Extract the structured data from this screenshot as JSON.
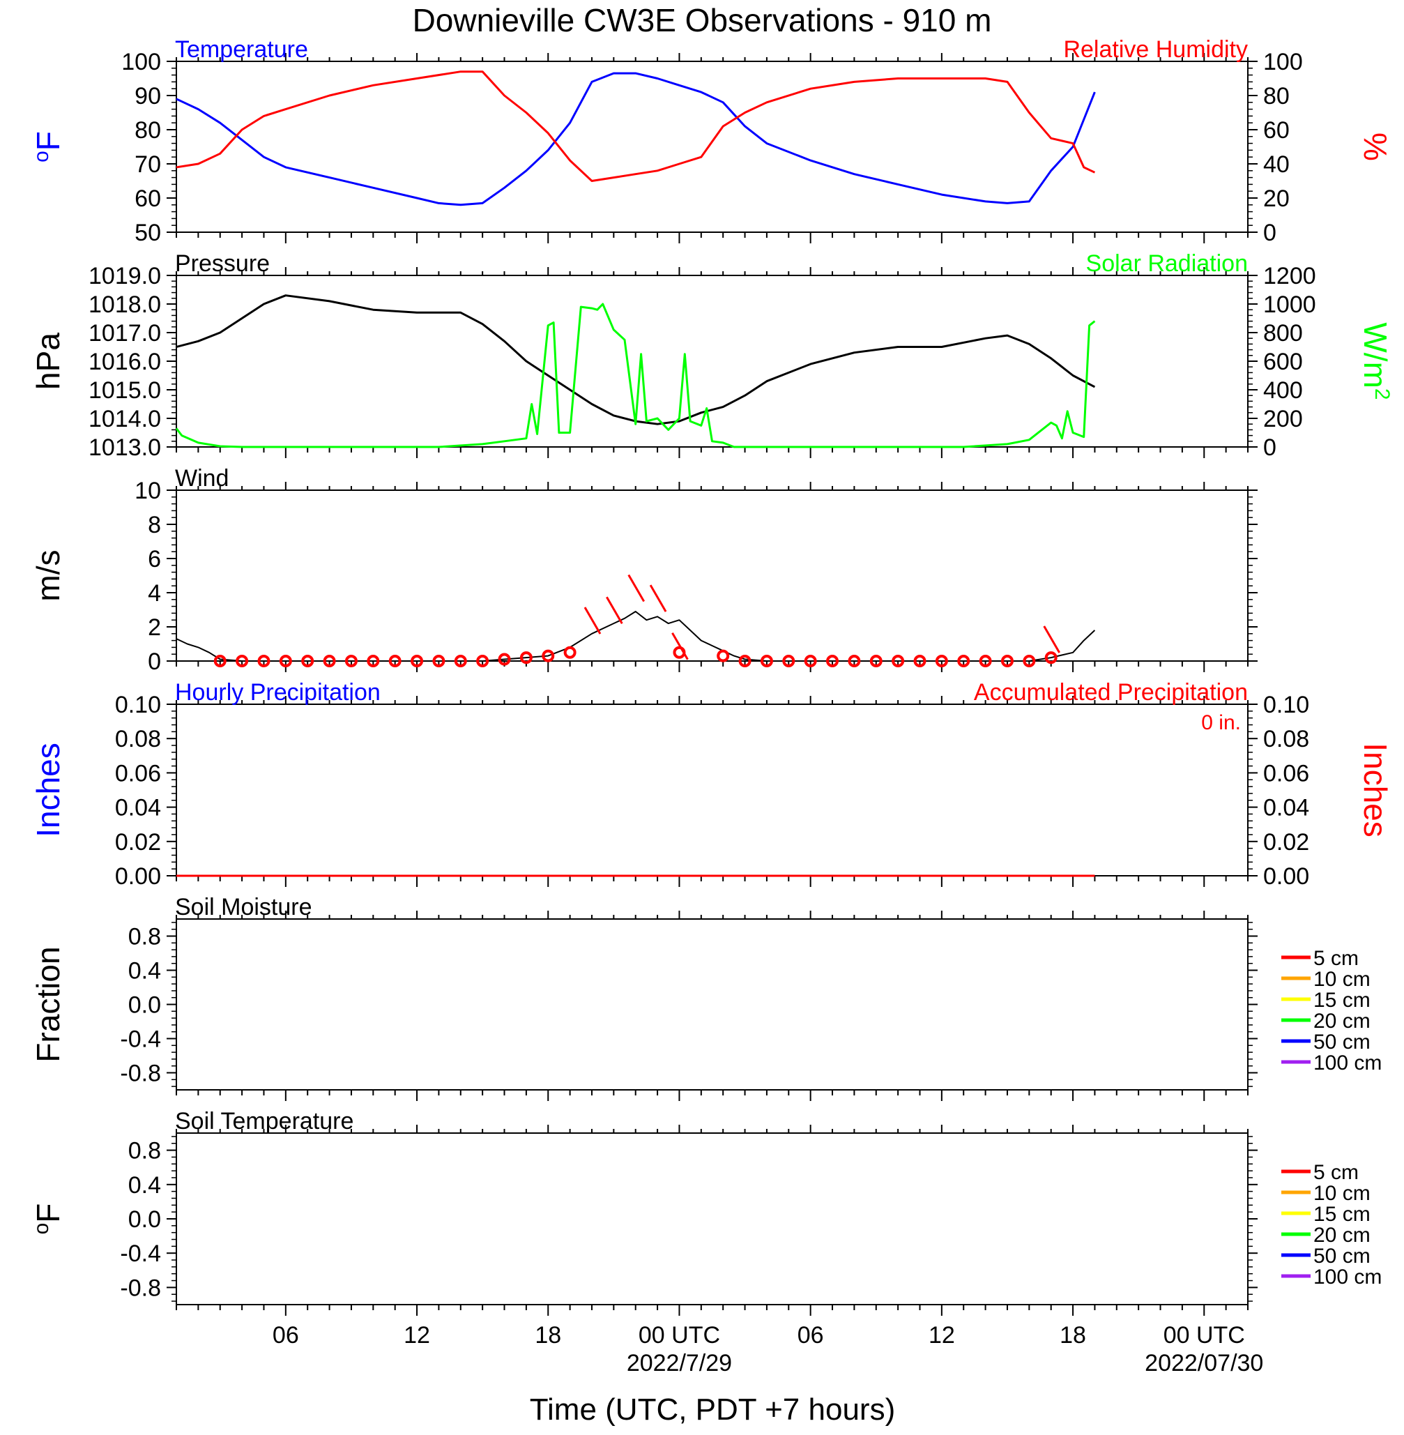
{
  "title": "Downieville CW3E Observations - 910 m",
  "xlabel": "Time (UTC, PDT +7 hours)",
  "time_axis": {
    "start": "2022-07-28T01:00Z",
    "end": "2022-07-30T02:00Z",
    "tick_labels": [
      {
        "time": "2022-07-28T06:00Z",
        "label": "06"
      },
      {
        "time": "2022-07-28T12:00Z",
        "label": "12"
      },
      {
        "time": "2022-07-28T18:00Z",
        "label": "18"
      },
      {
        "time": "2022-07-29T00:00Z",
        "label": "00 UTC",
        "date": "2022/7/29"
      },
      {
        "time": "2022-07-29T06:00Z",
        "label": "06"
      },
      {
        "time": "2022-07-29T12:00Z",
        "label": "12"
      },
      {
        "time": "2022-07-29T18:00Z",
        "label": "18"
      },
      {
        "time": "2022-07-30T00:00Z",
        "label": "00 UTC",
        "date": "2022/07/30"
      }
    ]
  },
  "colors": {
    "temperature": "#0000ff",
    "humidity": "#ff0000",
    "pressure": "#000000",
    "solar": "#00ff00",
    "wind": "#000000",
    "wind_barb": "#ff0000",
    "hourly_precip": "#0000ff",
    "accum_precip": "#ff0000"
  },
  "chart_data": [
    {
      "type": "line",
      "panel": "temperature-humidity",
      "left_title": "Temperature",
      "right_title": "Relative Humidity",
      "ylabel_left": "oF",
      "ylabel_right": "%",
      "ylim_left": [
        50,
        100
      ],
      "ylim_right": [
        0,
        100
      ],
      "yticks_left": [
        "50",
        "60",
        "70",
        "80",
        "90",
        "100"
      ],
      "yticks_right": [
        "0",
        "20",
        "40",
        "60",
        "80",
        "100"
      ],
      "series": [
        {
          "key": "temperature",
          "axis": "left",
          "x": [
            "2022-07-28T01:00Z",
            "2022-07-28T02:00Z",
            "2022-07-28T03:00Z",
            "2022-07-28T04:00Z",
            "2022-07-28T05:00Z",
            "2022-07-28T06:00Z",
            "2022-07-28T08:00Z",
            "2022-07-28T10:00Z",
            "2022-07-28T12:00Z",
            "2022-07-28T13:00Z",
            "2022-07-28T14:00Z",
            "2022-07-28T15:00Z",
            "2022-07-28T16:00Z",
            "2022-07-28T17:00Z",
            "2022-07-28T18:00Z",
            "2022-07-28T19:00Z",
            "2022-07-28T20:00Z",
            "2022-07-28T21:00Z",
            "2022-07-28T22:00Z",
            "2022-07-28T23:00Z",
            "2022-07-29T00:00Z",
            "2022-07-29T01:00Z",
            "2022-07-29T02:00Z",
            "2022-07-29T03:00Z",
            "2022-07-29T04:00Z",
            "2022-07-29T06:00Z",
            "2022-07-29T08:00Z",
            "2022-07-29T10:00Z",
            "2022-07-29T12:00Z",
            "2022-07-29T14:00Z",
            "2022-07-29T15:00Z",
            "2022-07-29T16:00Z",
            "2022-07-29T17:00Z",
            "2022-07-29T18:00Z",
            "2022-07-29T19:00Z"
          ],
          "y": [
            89,
            86,
            82,
            77,
            72,
            69,
            66,
            63,
            60,
            58.5,
            58,
            58.5,
            63,
            68,
            74,
            82,
            94,
            96.5,
            96.5,
            95,
            93,
            91,
            88,
            81,
            76,
            71,
            67,
            64,
            61,
            59,
            58.5,
            59,
            68,
            75,
            91
          ]
        },
        {
          "key": "humidity",
          "axis": "right",
          "x": [
            "2022-07-28T01:00Z",
            "2022-07-28T02:00Z",
            "2022-07-28T03:00Z",
            "2022-07-28T04:00Z",
            "2022-07-28T05:00Z",
            "2022-07-28T06:00Z",
            "2022-07-28T08:00Z",
            "2022-07-28T10:00Z",
            "2022-07-28T12:00Z",
            "2022-07-28T14:00Z",
            "2022-07-28T15:00Z",
            "2022-07-28T16:00Z",
            "2022-07-28T17:00Z",
            "2022-07-28T18:00Z",
            "2022-07-28T19:00Z",
            "2022-07-28T20:00Z",
            "2022-07-28T21:00Z",
            "2022-07-28T22:00Z",
            "2022-07-28T23:00Z",
            "2022-07-29T00:00Z",
            "2022-07-29T01:00Z",
            "2022-07-29T02:00Z",
            "2022-07-29T03:00Z",
            "2022-07-29T04:00Z",
            "2022-07-29T06:00Z",
            "2022-07-29T08:00Z",
            "2022-07-29T10:00Z",
            "2022-07-29T12:00Z",
            "2022-07-29T14:00Z",
            "2022-07-29T15:00Z",
            "2022-07-29T16:00Z",
            "2022-07-29T17:00Z",
            "2022-07-29T18:00Z",
            "2022-07-29T18:30Z",
            "2022-07-29T19:00Z"
          ],
          "y": [
            38,
            40,
            46,
            60,
            68,
            72,
            80,
            86,
            90,
            94,
            94,
            80,
            70,
            58,
            42,
            30,
            32,
            34,
            36,
            40,
            44,
            62,
            70,
            76,
            84,
            88,
            90,
            90,
            90,
            88,
            70,
            55,
            52,
            38,
            35
          ]
        }
      ]
    },
    {
      "type": "line",
      "panel": "pressure-solar",
      "left_title": "Pressure",
      "right_title": "Solar Radiation",
      "ylabel_left": "hPa",
      "ylabel_right": "W/m2",
      "ylim_left": [
        1013.0,
        1019.0
      ],
      "ylim_right": [
        0,
        1200
      ],
      "yticks_left": [
        "1013.0",
        "1014.0",
        "1015.0",
        "1016.0",
        "1017.0",
        "1018.0",
        "1019.0"
      ],
      "yticks_right": [
        "0",
        "200",
        "400",
        "600",
        "800",
        "1000",
        "1200"
      ],
      "series": [
        {
          "key": "pressure",
          "axis": "left",
          "x": [
            "2022-07-28T01:00Z",
            "2022-07-28T02:00Z",
            "2022-07-28T03:00Z",
            "2022-07-28T04:00Z",
            "2022-07-28T05:00Z",
            "2022-07-28T06:00Z",
            "2022-07-28T08:00Z",
            "2022-07-28T10:00Z",
            "2022-07-28T12:00Z",
            "2022-07-28T14:00Z",
            "2022-07-28T15:00Z",
            "2022-07-28T16:00Z",
            "2022-07-28T17:00Z",
            "2022-07-28T18:00Z",
            "2022-07-28T19:00Z",
            "2022-07-28T20:00Z",
            "2022-07-28T21:00Z",
            "2022-07-28T22:00Z",
            "2022-07-28T23:00Z",
            "2022-07-29T00:00Z",
            "2022-07-29T01:00Z",
            "2022-07-29T02:00Z",
            "2022-07-29T03:00Z",
            "2022-07-29T04:00Z",
            "2022-07-29T06:00Z",
            "2022-07-29T08:00Z",
            "2022-07-29T10:00Z",
            "2022-07-29T12:00Z",
            "2022-07-29T14:00Z",
            "2022-07-29T15:00Z",
            "2022-07-29T16:00Z",
            "2022-07-29T17:00Z",
            "2022-07-29T18:00Z",
            "2022-07-29T19:00Z"
          ],
          "y": [
            1016.5,
            1016.7,
            1017.0,
            1017.5,
            1018.0,
            1018.3,
            1018.1,
            1017.8,
            1017.7,
            1017.7,
            1017.3,
            1016.7,
            1016.0,
            1015.5,
            1015.0,
            1014.5,
            1014.1,
            1013.9,
            1013.8,
            1013.9,
            1014.2,
            1014.4,
            1014.8,
            1015.3,
            1015.9,
            1016.3,
            1016.5,
            1016.5,
            1016.8,
            1016.9,
            1016.6,
            1016.1,
            1015.5,
            1015.1
          ]
        },
        {
          "key": "solar",
          "axis": "right",
          "x": [
            "2022-07-28T01:00Z",
            "2022-07-28T01:15Z",
            "2022-07-28T02:00Z",
            "2022-07-28T03:00Z",
            "2022-07-28T04:00Z",
            "2022-07-28T13:00Z",
            "2022-07-28T15:00Z",
            "2022-07-28T16:00Z",
            "2022-07-28T17:00Z",
            "2022-07-28T17:15Z",
            "2022-07-28T17:30Z",
            "2022-07-28T18:00Z",
            "2022-07-28T18:15Z",
            "2022-07-28T18:30Z",
            "2022-07-28T19:00Z",
            "2022-07-28T19:30Z",
            "2022-07-28T20:00Z",
            "2022-07-28T20:15Z",
            "2022-07-28T20:30Z",
            "2022-07-28T21:00Z",
            "2022-07-28T21:30Z",
            "2022-07-28T22:00Z",
            "2022-07-28T22:15Z",
            "2022-07-28T22:30Z",
            "2022-07-28T23:00Z",
            "2022-07-28T23:15Z",
            "2022-07-28T23:30Z",
            "2022-07-29T00:00Z",
            "2022-07-29T00:15Z",
            "2022-07-29T00:30Z",
            "2022-07-29T01:00Z",
            "2022-07-29T01:15Z",
            "2022-07-29T01:30Z",
            "2022-07-29T02:00Z",
            "2022-07-29T02:30Z",
            "2022-07-29T03:00Z",
            "2022-07-29T04:00Z",
            "2022-07-29T13:00Z",
            "2022-07-29T15:00Z",
            "2022-07-29T16:00Z",
            "2022-07-29T17:00Z",
            "2022-07-29T17:15Z",
            "2022-07-29T17:30Z",
            "2022-07-29T17:45Z",
            "2022-07-29T18:00Z",
            "2022-07-29T18:30Z",
            "2022-07-29T18:45Z",
            "2022-07-29T19:00Z"
          ],
          "y": [
            130,
            80,
            30,
            5,
            0,
            0,
            20,
            40,
            60,
            300,
            90,
            850,
            870,
            100,
            100,
            980,
            970,
            960,
            1000,
            820,
            750,
            160,
            650,
            180,
            200,
            160,
            120,
            200,
            650,
            180,
            150,
            270,
            40,
            30,
            0,
            0,
            0,
            0,
            20,
            50,
            170,
            150,
            60,
            250,
            100,
            70,
            850,
            880
          ]
        }
      ]
    },
    {
      "type": "line",
      "panel": "wind",
      "left_title": "Wind",
      "ylabel_left": "m/s",
      "ylim_left": [
        0,
        10
      ],
      "yticks_left": [
        "0",
        "2",
        "4",
        "6",
        "8",
        "10"
      ],
      "series": [
        {
          "key": "wind",
          "axis": "left",
          "x": [
            "2022-07-28T01:00Z",
            "2022-07-28T01:30Z",
            "2022-07-28T02:00Z",
            "2022-07-28T02:30Z",
            "2022-07-28T03:00Z",
            "2022-07-28T04:00Z",
            "2022-07-28T12:00Z",
            "2022-07-28T15:00Z",
            "2022-07-28T16:00Z",
            "2022-07-28T17:00Z",
            "2022-07-28T18:00Z",
            "2022-07-28T19:00Z",
            "2022-07-28T20:00Z",
            "2022-07-28T21:00Z",
            "2022-07-28T21:30Z",
            "2022-07-28T22:00Z",
            "2022-07-28T22:30Z",
            "2022-07-28T23:00Z",
            "2022-07-28T23:30Z",
            "2022-07-29T00:00Z",
            "2022-07-29T00:30Z",
            "2022-07-29T01:00Z",
            "2022-07-29T01:30Z",
            "2022-07-29T02:00Z",
            "2022-07-29T02:30Z",
            "2022-07-29T03:00Z",
            "2022-07-29T04:00Z",
            "2022-07-29T12:00Z",
            "2022-07-29T16:00Z",
            "2022-07-29T17:00Z",
            "2022-07-29T18:00Z",
            "2022-07-29T18:30Z",
            "2022-07-29T19:00Z"
          ],
          "y": [
            1.3,
            1.0,
            0.8,
            0.5,
            0.1,
            0.0,
            0.0,
            0.0,
            0.1,
            0.2,
            0.3,
            0.8,
            1.6,
            2.2,
            2.5,
            2.9,
            2.4,
            2.6,
            2.2,
            2.4,
            1.8,
            1.2,
            0.9,
            0.6,
            0.3,
            0.1,
            0.0,
            0.0,
            0.0,
            0.2,
            0.5,
            1.2,
            1.8
          ]
        }
      ],
      "barb_times": [
        "2022-07-28T03:00Z",
        "2022-07-28T04:00Z",
        "2022-07-28T05:00Z",
        "2022-07-28T06:00Z",
        "2022-07-28T07:00Z",
        "2022-07-28T08:00Z",
        "2022-07-28T09:00Z",
        "2022-07-28T10:00Z",
        "2022-07-28T11:00Z",
        "2022-07-28T12:00Z",
        "2022-07-28T13:00Z",
        "2022-07-28T14:00Z",
        "2022-07-28T15:00Z",
        "2022-07-28T16:00Z",
        "2022-07-28T17:00Z",
        "2022-07-28T18:00Z",
        "2022-07-28T19:00Z",
        "2022-07-29T00:00Z",
        "2022-07-29T02:00Z",
        "2022-07-29T03:00Z",
        "2022-07-29T04:00Z",
        "2022-07-29T05:00Z",
        "2022-07-29T06:00Z",
        "2022-07-29T07:00Z",
        "2022-07-29T08:00Z",
        "2022-07-29T09:00Z",
        "2022-07-29T10:00Z",
        "2022-07-29T11:00Z",
        "2022-07-29T12:00Z",
        "2022-07-29T13:00Z",
        "2022-07-29T14:00Z",
        "2022-07-29T15:00Z",
        "2022-07-29T16:00Z",
        "2022-07-29T17:00Z"
      ],
      "barb_speeds": [
        0,
        0,
        0,
        0,
        0,
        0,
        0,
        0,
        0,
        0,
        0,
        0,
        0,
        0.1,
        0.2,
        0.3,
        0.5,
        0.5,
        0.3,
        0,
        0,
        0,
        0,
        0,
        0,
        0,
        0,
        0,
        0,
        0,
        0,
        0,
        0,
        0.2
      ]
    },
    {
      "type": "line",
      "panel": "precipitation",
      "left_title": "Hourly Precipitation",
      "right_title": "Accumulated Precipitation",
      "total_label": "0 in.",
      "ylabel_left": "Inches",
      "ylabel_right": "Inches",
      "ylim_left": [
        0,
        0.1
      ],
      "ylim_right": [
        0,
        0.1
      ],
      "yticks_left": [
        "0.00",
        "0.02",
        "0.04",
        "0.06",
        "0.08",
        "0.10"
      ],
      "yticks_right": [
        "0.00",
        "0.02",
        "0.04",
        "0.06",
        "0.08",
        "0.10"
      ],
      "series": [
        {
          "key": "accum_precip",
          "axis": "left",
          "x": [
            "2022-07-28T01:00Z",
            "2022-07-29T19:00Z"
          ],
          "y": [
            0,
            0
          ]
        }
      ]
    },
    {
      "type": "line",
      "panel": "soil-moisture",
      "left_title": "Soil Moisture",
      "ylabel_left": "Fraction",
      "ylim_left": [
        -1,
        1
      ],
      "yticks_left": [
        "-0.8",
        "-0.4",
        "0.0",
        "0.4",
        "0.8"
      ],
      "series": [],
      "legend": [
        {
          "name": "5 cm",
          "color": "#ff0000"
        },
        {
          "name": "10 cm",
          "color": "#ffa500"
        },
        {
          "name": "15 cm",
          "color": "#ffff00"
        },
        {
          "name": "20 cm",
          "color": "#00ff00"
        },
        {
          "name": "50 cm",
          "color": "#0000ff"
        },
        {
          "name": "100 cm",
          "color": "#a020f0"
        }
      ]
    },
    {
      "type": "line",
      "panel": "soil-temperature",
      "left_title": "Soil Temperature",
      "ylabel_left": "oF",
      "ylim_left": [
        -1,
        1
      ],
      "yticks_left": [
        "-0.8",
        "-0.4",
        "0.0",
        "0.4",
        "0.8"
      ],
      "series": [],
      "legend": [
        {
          "name": "5 cm",
          "color": "#ff0000"
        },
        {
          "name": "10 cm",
          "color": "#ffa500"
        },
        {
          "name": "15 cm",
          "color": "#ffff00"
        },
        {
          "name": "20 cm",
          "color": "#00ff00"
        },
        {
          "name": "50 cm",
          "color": "#0000ff"
        },
        {
          "name": "100 cm",
          "color": "#a020f0"
        }
      ]
    }
  ]
}
